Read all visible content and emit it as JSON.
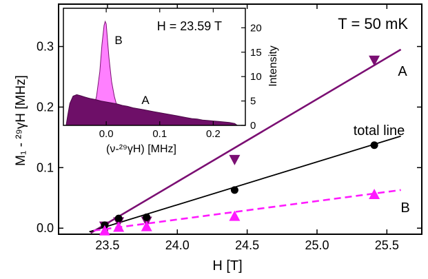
{
  "chart_data": [
    {
      "type": "scatter",
      "annotation": "T = 50 mK",
      "xlabel": "H [T]",
      "ylabel": "M₁ - ²⁹γH [MHz]",
      "xlim": [
        23.15,
        25.75
      ],
      "ylim": [
        -0.01,
        0.37
      ],
      "xticks": [
        23.5,
        24.0,
        24.5,
        25.0,
        25.5
      ],
      "yticks": [
        0.0,
        0.1,
        0.2,
        0.3
      ],
      "xtick_labels": [
        "23.5",
        "24.0",
        "24.5",
        "25.0",
        "25.5"
      ],
      "ytick_labels": [
        "0.0",
        "0.1",
        "0.2",
        "0.3"
      ],
      "grid": false,
      "colors": {
        "A": "#7b0f73",
        "B": "#ff1aff",
        "total": "#000000"
      },
      "series": [
        {
          "name": "A",
          "marker": "triangle-down",
          "x": [
            23.48,
            23.58,
            23.78,
            24.41,
            25.41
          ],
          "y": [
            0.003,
            0.01,
            0.011,
            0.113,
            0.277
          ],
          "fit": {
            "x": [
              23.38,
              25.6
            ],
            "y": [
              -0.008,
              0.295
            ],
            "style": "solid"
          }
        },
        {
          "name": "total line",
          "marker": "circle",
          "x": [
            23.48,
            23.58,
            23.78,
            24.41,
            25.41
          ],
          "y": [
            0.005,
            0.016,
            0.018,
            0.063,
            0.137
          ],
          "fit": {
            "x": [
              23.37,
              25.6
            ],
            "y": [
              -0.006,
              0.152
            ],
            "style": "solid"
          }
        },
        {
          "name": "B",
          "marker": "triangle-up",
          "x": [
            23.48,
            23.58,
            23.78,
            24.41,
            25.41
          ],
          "y": [
            -0.004,
            0.002,
            0.003,
            0.02,
            0.056
          ],
          "fit": {
            "x": [
              23.4,
              25.6
            ],
            "y": [
              -0.004,
              0.063
            ],
            "style": "dashed"
          }
        }
      ],
      "series_labels": [
        "A",
        "total line",
        "B"
      ]
    },
    {
      "type": "area",
      "annotation": "H = 23.59 T",
      "xlabel": "(ν-²⁹γH) [MHz]",
      "ylabel": "Intensity",
      "xlim": [
        -0.08,
        0.26
      ],
      "ylim": [
        0,
        24
      ],
      "xticks": [
        0.0,
        0.1,
        0.2
      ],
      "yticks": [
        0,
        5,
        10,
        15,
        20
      ],
      "xtick_labels": [
        "0.0",
        "0.1",
        "0.2"
      ],
      "ytick_labels": [
        "0",
        "5",
        "10",
        "15",
        "20"
      ],
      "series": [
        {
          "name": "B",
          "x": [
            -0.07,
            -0.05,
            -0.035,
            -0.025,
            -0.018,
            -0.012,
            -0.008,
            -0.004,
            -0.002,
            0.0,
            0.002,
            0.005,
            0.01,
            0.015,
            0.02,
            0.025,
            0.03,
            0.04,
            0.05
          ],
          "y": [
            0.0,
            0.3,
            1.0,
            2.8,
            6.0,
            11.0,
            16.5,
            20.5,
            21.3,
            20.8,
            18.0,
            14.0,
            9.0,
            6.0,
            4.0,
            2.6,
            1.8,
            0.8,
            0.0
          ]
        },
        {
          "name": "A",
          "x": [
            -0.075,
            -0.072,
            -0.068,
            -0.062,
            -0.055,
            -0.048,
            -0.04,
            -0.03,
            -0.02,
            -0.01,
            0.0,
            0.01,
            0.02,
            0.03,
            0.04,
            0.05,
            0.06,
            0.07,
            0.08,
            0.09,
            0.1,
            0.11,
            0.12,
            0.13,
            0.14,
            0.15,
            0.16,
            0.17,
            0.18,
            0.19,
            0.2,
            0.21,
            0.22,
            0.23,
            0.24,
            0.245
          ],
          "y": [
            0.0,
            2.0,
            4.5,
            6.0,
            6.3,
            6.1,
            5.8,
            5.5,
            5.3,
            5.0,
            4.8,
            4.6,
            4.4,
            4.1,
            3.9,
            3.6,
            3.4,
            3.2,
            3.0,
            2.8,
            2.6,
            2.4,
            2.2,
            2.0,
            1.8,
            1.6,
            1.4,
            1.3,
            1.1,
            1.0,
            0.9,
            0.8,
            0.7,
            0.6,
            0.4,
            0.0
          ]
        }
      ],
      "series_labels": [
        "B",
        "A"
      ]
    }
  ]
}
